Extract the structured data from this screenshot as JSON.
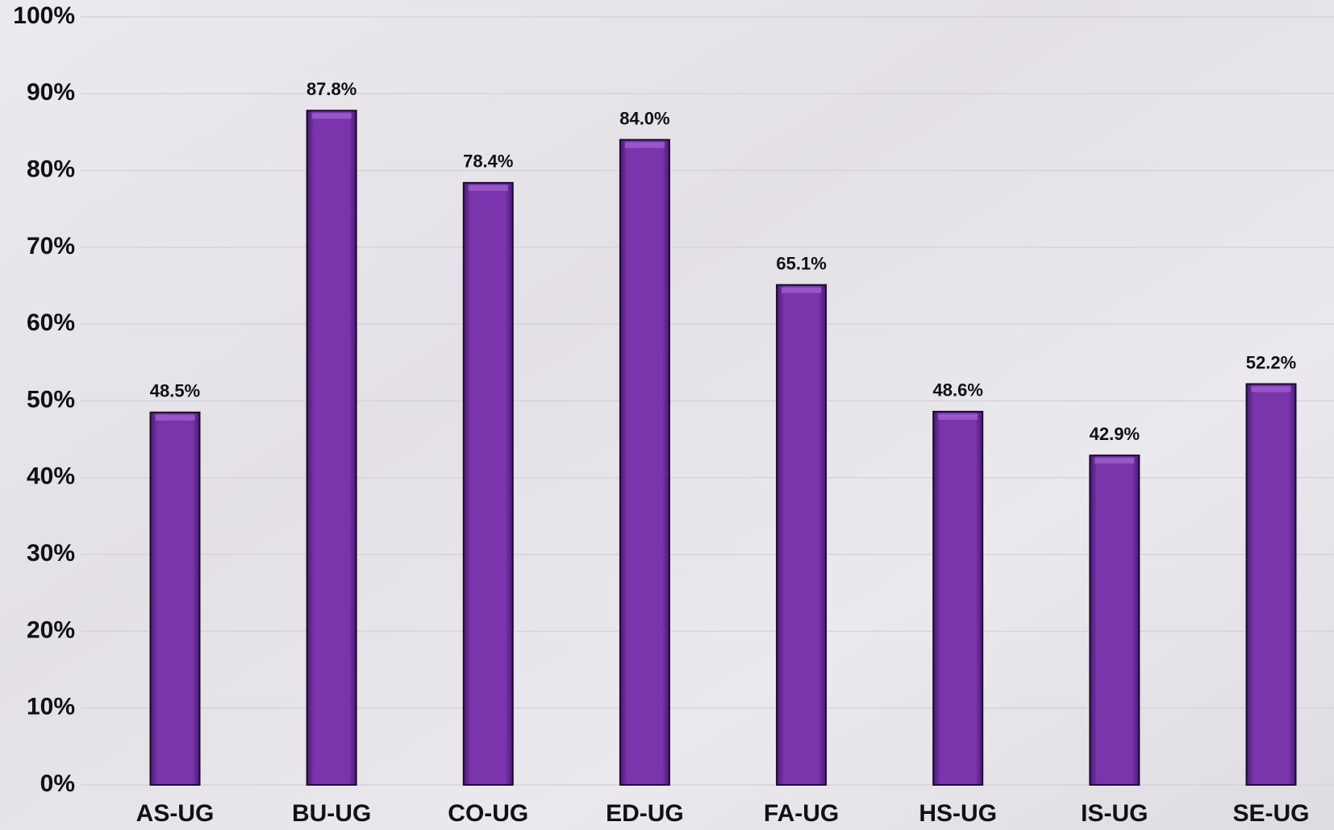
{
  "chart_data": {
    "type": "bar",
    "categories": [
      "AS-UG",
      "BU-UG",
      "CO-UG",
      "ED-UG",
      "FA-UG",
      "HS-UG",
      "IS-UG",
      "SE-UG"
    ],
    "values": [
      48.5,
      87.8,
      78.4,
      84.0,
      65.1,
      48.6,
      42.9,
      52.2
    ],
    "value_labels": [
      "48.5%",
      "87.8%",
      "78.4%",
      "84.0%",
      "65.1%",
      "48.6%",
      "42.9%",
      "52.2%"
    ],
    "color": "#7030a0",
    "ylim": [
      0,
      100
    ],
    "yticks": [
      {
        "value": 0,
        "label": "0%"
      },
      {
        "value": 10,
        "label": "10%"
      },
      {
        "value": 20,
        "label": "20%"
      },
      {
        "value": 30,
        "label": "30%"
      },
      {
        "value": 40,
        "label": "40%"
      },
      {
        "value": 50,
        "label": "50%"
      },
      {
        "value": 60,
        "label": "60%"
      },
      {
        "value": 70,
        "label": "70%"
      },
      {
        "value": 80,
        "label": "80%"
      },
      {
        "value": 90,
        "label": "90%"
      },
      {
        "value": 100,
        "label": "100%"
      }
    ],
    "grid": true
  }
}
